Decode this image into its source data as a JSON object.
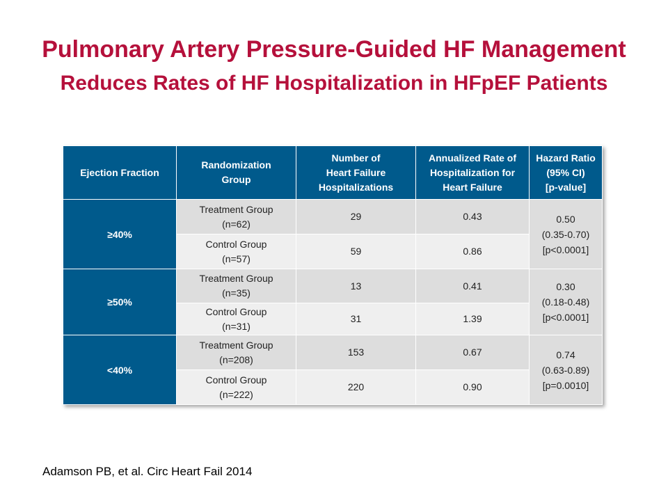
{
  "title": {
    "line1": "Pulmonary Artery Pressure-Guided HF Management",
    "line2": "Reduces Rates of HF Hospitalization in HFpEF Patients"
  },
  "table": {
    "headers": [
      [
        "Ejection Fraction"
      ],
      [
        "Randomization",
        "Group"
      ],
      [
        "Number of",
        "Heart Failure",
        "Hospitalizations"
      ],
      [
        "Annualized Rate of",
        "Hospitalization for",
        "Heart Failure"
      ],
      [
        "Hazard Ratio",
        "(95% CI)",
        "[p-value]"
      ]
    ],
    "groups": [
      {
        "ef": "≥40%",
        "hazard": [
          "0.50",
          "(0.35-0.70)",
          "[p<0.0001]"
        ],
        "rows": [
          {
            "group": [
              "Treatment Group",
              "(n=62)"
            ],
            "count": "29",
            "rate": "0.43"
          },
          {
            "group": [
              "Control Group",
              "(n=57)"
            ],
            "count": "59",
            "rate": "0.86"
          }
        ]
      },
      {
        "ef": "≥50%",
        "hazard": [
          "0.30",
          "(0.18-0.48)",
          "[p<0.0001]"
        ],
        "rows": [
          {
            "group": [
              "Treatment Group",
              "(n=35)"
            ],
            "count": "13",
            "rate": "0.41"
          },
          {
            "group": [
              "Control Group",
              "(n=31)"
            ],
            "count": "31",
            "rate": "1.39"
          }
        ]
      },
      {
        "ef": "<40%",
        "hazard": [
          "0.74",
          "(0.63-0.89)",
          "[p=0.0010]"
        ],
        "rows": [
          {
            "group": [
              "Treatment Group",
              "(n=208)"
            ],
            "count": "153",
            "rate": "0.67"
          },
          {
            "group": [
              "Control Group",
              "(n=222)"
            ],
            "count": "220",
            "rate": "0.90"
          }
        ]
      }
    ]
  },
  "citation": "Adamson PB, et al. Circ Heart Fail 2014"
}
